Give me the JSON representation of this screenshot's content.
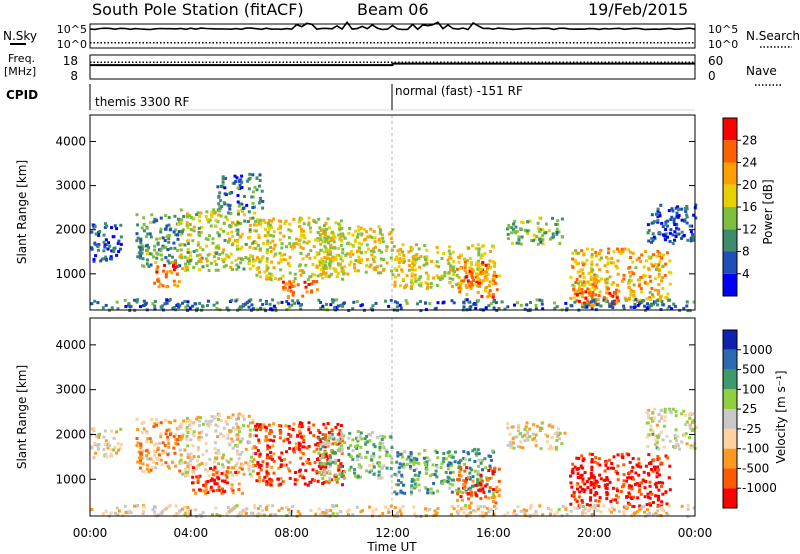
{
  "header": {
    "station": "South Pole Station (fitACF)",
    "beam": "Beam 06",
    "date": "19/Feb/2015"
  },
  "labels": {
    "nsky": "N.Sky",
    "freq": "Freq.",
    "freq_unit": "[MHz]",
    "cpid": "CPID",
    "nsearch": "N.Search",
    "nave": "Nave"
  },
  "cpid_segments": [
    {
      "start_hour": 0,
      "label": "themis 3300 RF"
    },
    {
      "start_hour": 12,
      "label": "normal (fast) -151 RF"
    }
  ],
  "chart_data": [
    {
      "type": "line",
      "name": "noise-panel",
      "left_ticks": [
        "10^5",
        "10^0"
      ],
      "right_ticks": [
        "10^5",
        "10^0"
      ],
      "series": [
        {
          "name": "N.Sky",
          "level": 0.8
        },
        {
          "name": "N.Search",
          "level": 0.22
        }
      ]
    },
    {
      "type": "line",
      "name": "frequency-panel",
      "left_ticks": [
        "18",
        "8"
      ],
      "right_ticks": [
        "60",
        "0"
      ],
      "series": [
        {
          "name": "Freq.",
          "segments": [
            {
              "from": 0,
              "to": 12,
              "level": 0.58
            },
            {
              "from": 12,
              "to": 24,
              "level": 0.64
            }
          ]
        },
        {
          "name": "Nave",
          "segments": [
            {
              "from": 0,
              "to": 24,
              "level": 0.7
            }
          ]
        }
      ]
    },
    {
      "type": "heatmap",
      "name": "power-panel",
      "ylabel": "Slant Range [km]",
      "ylim": [
        180,
        4600
      ],
      "yticks": [
        "1000",
        "2000",
        "3000",
        "4000"
      ],
      "xlim": [
        0,
        24
      ],
      "colorbar_label": "Power [dB]",
      "colorbar_ticks": [
        "28",
        "24",
        "20",
        "16",
        "12",
        "8",
        "4"
      ],
      "colors": [
        "#0000ff",
        "#1f4fb8",
        "#3e8c6c",
        "#7fbf3f",
        "#e8d000",
        "#ffa000",
        "#ff6000",
        "#ff0000"
      ],
      "regions": [
        {
          "t0": 0.0,
          "t1": 1.2,
          "r0": 1300,
          "r1": 2200,
          "level": 0.2
        },
        {
          "t0": 1.8,
          "t1": 3.5,
          "r0": 1200,
          "r1": 2400,
          "level": 0.35
        },
        {
          "t0": 2.5,
          "t1": 3.5,
          "r0": 700,
          "r1": 1300,
          "level": 0.8
        },
        {
          "t0": 3.5,
          "t1": 6.5,
          "r0": 1100,
          "r1": 2500,
          "level": 0.5
        },
        {
          "t0": 5.0,
          "t1": 6.8,
          "r0": 2500,
          "r1": 3300,
          "level": 0.25
        },
        {
          "t0": 6.5,
          "t1": 10.0,
          "r0": 900,
          "r1": 2300,
          "level": 0.55
        },
        {
          "t0": 7.6,
          "t1": 9.0,
          "r0": 500,
          "r1": 900,
          "level": 0.8
        },
        {
          "t0": 9.0,
          "t1": 12.0,
          "r0": 1000,
          "r1": 2100,
          "level": 0.55
        },
        {
          "t0": 12.0,
          "t1": 16.0,
          "r0": 700,
          "r1": 1700,
          "level": 0.55
        },
        {
          "t0": 14.5,
          "t1": 16.2,
          "r0": 500,
          "r1": 1300,
          "level": 0.75
        },
        {
          "t0": 16.5,
          "t1": 18.8,
          "r0": 1700,
          "r1": 2300,
          "level": 0.4
        },
        {
          "t0": 19.0,
          "t1": 23.0,
          "r0": 400,
          "r1": 1600,
          "level": 0.65
        },
        {
          "t0": 19.2,
          "t1": 21.0,
          "r0": 300,
          "r1": 700,
          "level": 0.85
        },
        {
          "t0": 22.0,
          "t1": 24.0,
          "r0": 1700,
          "r1": 2600,
          "level": 0.2
        },
        {
          "t0": 0.0,
          "t1": 24.0,
          "r0": 200,
          "r1": 450,
          "level": 0.25
        }
      ]
    },
    {
      "type": "heatmap",
      "name": "velocity-panel",
      "ylabel": "Slant Range [km]",
      "ylim": [
        180,
        4600
      ],
      "yticks": [
        "1000",
        "2000",
        "3000",
        "4000"
      ],
      "xlim": [
        0,
        24
      ],
      "xticks": [
        "00:00",
        "04:00",
        "08:00",
        "12:00",
        "16:00",
        "20:00",
        "00:00"
      ],
      "xlabel": "Time UT",
      "colorbar_label": "Velocity [m s⁻¹]",
      "colorbar_ticks": [
        "1000",
        "500",
        "100",
        "25",
        "-25",
        "-100",
        "-500",
        "-1000"
      ],
      "colors": [
        "#ff0000",
        "#ff5a00",
        "#ff9a20",
        "#ffd0a0",
        "#c8c8c8",
        "#90d040",
        "#3e9a6a",
        "#2c6ab0",
        "#1020b0"
      ],
      "regions": [
        {
          "t0": 0.0,
          "t1": 1.2,
          "r0": 1500,
          "r1": 2200,
          "level": 0.45
        },
        {
          "t0": 1.8,
          "t1": 3.5,
          "r0": 1200,
          "r1": 2400,
          "level": 0.3
        },
        {
          "t0": 3.5,
          "t1": 6.5,
          "r0": 1100,
          "r1": 2500,
          "level": 0.45
        },
        {
          "t0": 4.0,
          "t1": 6.0,
          "r0": 700,
          "r1": 1300,
          "level": 0.15
        },
        {
          "t0": 6.5,
          "t1": 10.0,
          "r0": 900,
          "r1": 2300,
          "level": 0.1
        },
        {
          "t0": 9.0,
          "t1": 12.0,
          "r0": 1000,
          "r1": 2100,
          "level": 0.6
        },
        {
          "t0": 12.0,
          "t1": 16.0,
          "r0": 700,
          "r1": 1700,
          "level": 0.7
        },
        {
          "t0": 14.5,
          "t1": 16.2,
          "r0": 500,
          "r1": 1300,
          "level": 0.15
        },
        {
          "t0": 16.5,
          "t1": 18.8,
          "r0": 1700,
          "r1": 2300,
          "level": 0.45
        },
        {
          "t0": 19.0,
          "t1": 23.0,
          "r0": 400,
          "r1": 1600,
          "level": 0.05
        },
        {
          "t0": 22.0,
          "t1": 24.0,
          "r0": 1700,
          "r1": 2600,
          "level": 0.5
        },
        {
          "t0": 0.0,
          "t1": 24.0,
          "r0": 200,
          "r1": 450,
          "level": 0.4
        }
      ]
    }
  ]
}
